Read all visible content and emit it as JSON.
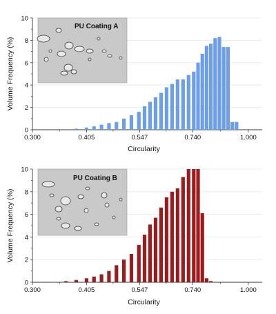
{
  "chart_data": [
    {
      "type": "bar",
      "inset_label": "PU Coating A",
      "xlabel": "Circularity",
      "ylabel": "Volume Frequency (%)",
      "xlim": [
        0.25,
        1.05
      ],
      "ylim": [
        0,
        10
      ],
      "xticks": [
        "0.300",
        "0.405",
        "0.547",
        "0.740",
        "1.000"
      ],
      "yticks": [
        "0",
        "2",
        "4",
        "6",
        "8",
        "10"
      ],
      "bar_color": "#6d9eeb",
      "grid": true,
      "x": [
        0.385,
        0.405,
        0.425,
        0.445,
        0.465,
        0.485,
        0.505,
        0.525,
        0.545,
        0.565,
        0.585,
        0.605,
        0.625,
        0.645,
        0.665,
        0.685,
        0.705,
        0.725,
        0.745,
        0.765,
        0.785,
        0.805,
        0.825,
        0.845,
        0.865,
        0.885,
        0.905
      ],
      "values": [
        0.1,
        0.2,
        0.3,
        0.45,
        0.6,
        0.7,
        1.0,
        1.3,
        1.6,
        2.1,
        2.5,
        2.9,
        3.3,
        3.8,
        4.1,
        4.5,
        4.5,
        4.9,
        5.2,
        6.0,
        6.8,
        7.5,
        7.7,
        8.2,
        8.3,
        7.4,
        7.4
      ],
      "extra_x": [
        0.925,
        0.945
      ],
      "extra_values": [
        0.7,
        0.7
      ]
    },
    {
      "type": "bar",
      "inset_label": "PU Coating B",
      "xlabel": "Circularity",
      "ylabel": "Volume Frequency (%)",
      "xlim": [
        0.25,
        1.05
      ],
      "ylim": [
        0,
        10
      ],
      "xticks": [
        "0.300",
        "0.405",
        "0.547",
        "0.740",
        "1.000"
      ],
      "yticks": [
        "0",
        "2",
        "4",
        "6",
        "8",
        "10"
      ],
      "bar_color": "#9b1c1c",
      "grid": true,
      "x": [
        0.365,
        0.385,
        0.405,
        0.425,
        0.445,
        0.465,
        0.485,
        0.505,
        0.525,
        0.545,
        0.565,
        0.585,
        0.605,
        0.625,
        0.645,
        0.665,
        0.685,
        0.705,
        0.725,
        0.745,
        0.765
      ],
      "values": [
        0.1,
        0.2,
        0.35,
        0.5,
        0.7,
        1.0,
        1.5,
        2.0,
        2.5,
        3.3,
        4.2,
        5.1,
        5.7,
        6.6,
        7.5,
        8.0,
        8.3,
        9.3,
        10.0,
        10.0,
        10.0
      ],
      "extra_x": [
        0.785,
        0.805,
        0.825
      ],
      "extra_values": [
        6.1,
        0.35,
        0.1
      ]
    }
  ]
}
